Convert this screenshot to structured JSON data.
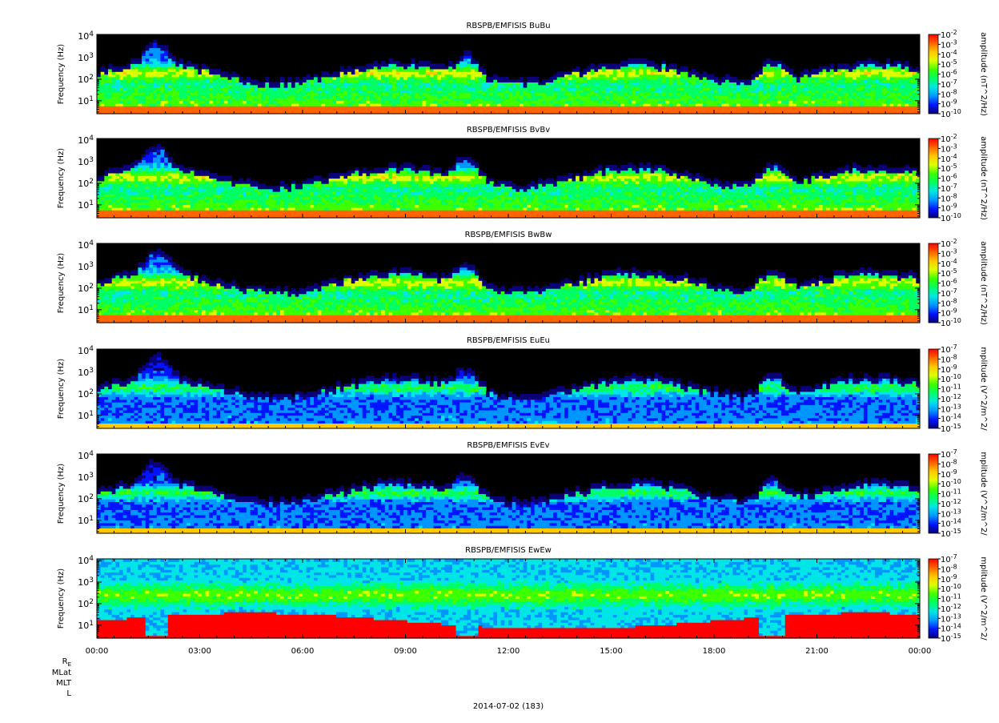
{
  "chart_data": [
    {
      "type": "heatmap",
      "title": "RBSPB/EMFISIS  BuBu",
      "ylabel": "Frequency (Hz)",
      "yscale": "log",
      "ylim": [
        2.5,
        12000
      ],
      "yticks": [
        "10^1",
        "10^2",
        "10^3",
        "10^4"
      ],
      "colorbar_label": "amplitude (nT^2/Hz)",
      "colorbar_ticks": [
        "10^-10",
        "10^-9",
        "10^-8",
        "10^-7",
        "10^-6",
        "10^-5",
        "10^-4",
        "10^-3",
        "10^-2"
      ],
      "crange_exp": [
        -10,
        -2
      ]
    },
    {
      "type": "heatmap",
      "title": "RBSPB/EMFISIS  BvBv",
      "ylabel": "Frequency (Hz)",
      "yscale": "log",
      "ylim": [
        2.5,
        12000
      ],
      "yticks": [
        "10^1",
        "10^2",
        "10^3",
        "10^4"
      ],
      "colorbar_label": "amplitude (nT^2/Hz)",
      "colorbar_ticks": [
        "10^-10",
        "10^-9",
        "10^-8",
        "10^-7",
        "10^-6",
        "10^-5",
        "10^-4",
        "10^-3",
        "10^-2"
      ],
      "crange_exp": [
        -10,
        -2
      ]
    },
    {
      "type": "heatmap",
      "title": "RBSPB/EMFISIS  BwBw",
      "ylabel": "Frequency (Hz)",
      "yscale": "log",
      "ylim": [
        2.5,
        12000
      ],
      "yticks": [
        "10^1",
        "10^2",
        "10^3",
        "10^4"
      ],
      "colorbar_label": "amplitude (nT^2/Hz)",
      "colorbar_ticks": [
        "10^-10",
        "10^-9",
        "10^-8",
        "10^-7",
        "10^-6",
        "10^-5",
        "10^-4",
        "10^-3",
        "10^-2"
      ],
      "crange_exp": [
        -10,
        -2
      ]
    },
    {
      "type": "heatmap",
      "title": "RBSPB/EMFISIS  EuEu",
      "ylabel": "Frequency (Hz)",
      "yscale": "log",
      "ylim": [
        2.5,
        12000
      ],
      "yticks": [
        "10^1",
        "10^2",
        "10^3",
        "10^4"
      ],
      "colorbar_label": "mplitude (V^2/m^2/",
      "colorbar_ticks": [
        "10^-15",
        "10^-14",
        "10^-13",
        "10^-12",
        "10^-11",
        "10^-10",
        "10^-9",
        "10^-8",
        "10^-7"
      ],
      "crange_exp": [
        -15,
        -7
      ]
    },
    {
      "type": "heatmap",
      "title": "RBSPB/EMFISIS  EvEv",
      "ylabel": "Frequency (Hz)",
      "yscale": "log",
      "ylim": [
        2.5,
        12000
      ],
      "yticks": [
        "10^1",
        "10^2",
        "10^3",
        "10^4"
      ],
      "colorbar_label": "mplitude (V^2/m^2/",
      "colorbar_ticks": [
        "10^-15",
        "10^-14",
        "10^-13",
        "10^-12",
        "10^-11",
        "10^-10",
        "10^-9",
        "10^-8",
        "10^-7"
      ],
      "crange_exp": [
        -15,
        -7
      ]
    },
    {
      "type": "heatmap",
      "title": "RBSPB/EMFISIS  EwEw",
      "ylabel": "Frequency (Hz)",
      "yscale": "log",
      "ylim": [
        2.5,
        12000
      ],
      "yticks": [
        "10^1",
        "10^2",
        "10^3",
        "10^4"
      ],
      "colorbar_label": "mplitude (V^2/m^2/",
      "colorbar_ticks": [
        "10^-15",
        "10^-14",
        "10^-13",
        "10^-12",
        "10^-11",
        "10^-10",
        "10^-9",
        "10^-8",
        "10^-7"
      ],
      "crange_exp": [
        -15,
        -7
      ],
      "xticks": [
        "00:00",
        "03:00",
        "06:00",
        "09:00",
        "12:00",
        "15:00",
        "18:00",
        "21:00",
        "00:00"
      ]
    }
  ],
  "xaxis": {
    "xlim_hours": [
      0,
      24
    ],
    "tick_labels": [
      "00:00",
      "03:00",
      "06:00",
      "09:00",
      "12:00",
      "15:00",
      "18:00",
      "21:00",
      "00:00"
    ],
    "ephemeris_labels": [
      "R_E",
      "MLat",
      "MLT",
      "L"
    ],
    "date_label": "2014-07-02 (183)"
  },
  "colors": {
    "background": "#ffffff",
    "no_signal": "#000000",
    "axis": "#000000"
  },
  "colormap": [
    "#0a0078",
    "#0014ff",
    "#0096ff",
    "#00e6e6",
    "#00ff64",
    "#3cff00",
    "#dcff00",
    "#ffc800",
    "#ff6400",
    "#ff0000"
  ]
}
